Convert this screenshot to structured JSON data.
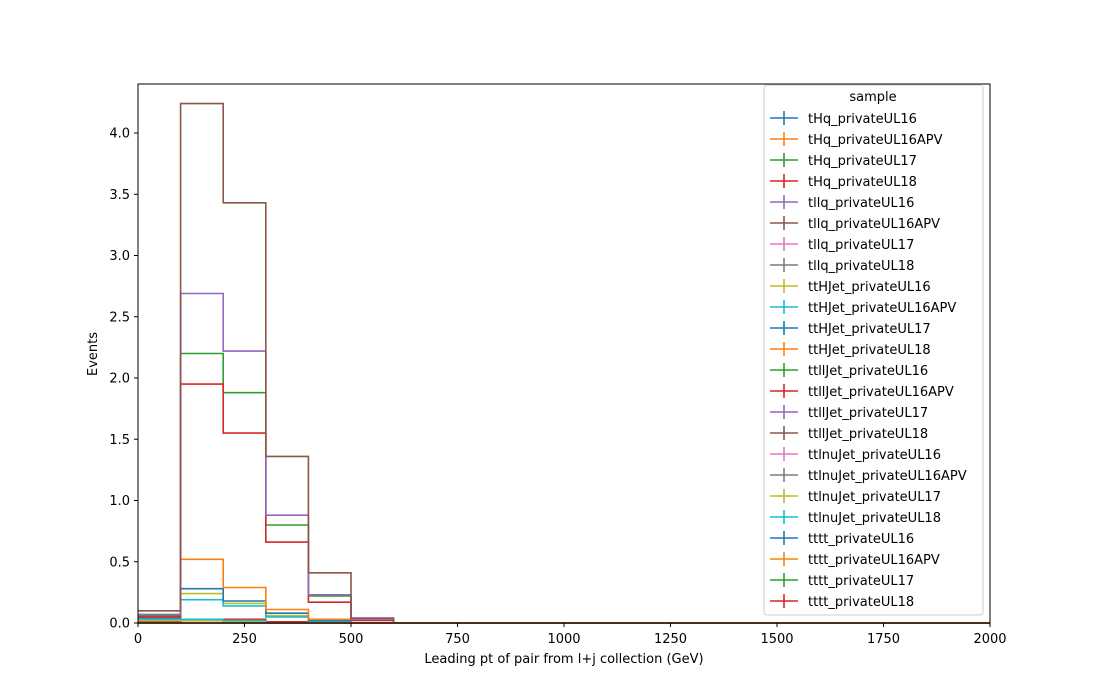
{
  "chart_data": {
    "type": "line",
    "style": "step-histogram",
    "xlabel": "Leading pt of pair from l+j collection (GeV)",
    "ylabel": "Events",
    "xlim": [
      0,
      2000
    ],
    "ylim": [
      0,
      4.4
    ],
    "x_ticks": [
      "0",
      "250",
      "500",
      "750",
      "1000",
      "1250",
      "1500",
      "1750",
      "2000"
    ],
    "y_ticks": [
      "0.0",
      "0.5",
      "1.0",
      "1.5",
      "2.0",
      "2.5",
      "3.0",
      "3.5",
      "4.0"
    ],
    "grid": false,
    "legend_title": "sample",
    "legend_position": "top-right",
    "bin_edges": [
      0,
      100,
      200,
      300,
      400,
      500,
      600,
      700,
      800,
      900,
      1000,
      1100,
      1200,
      1300,
      1400,
      1500,
      1600,
      1700,
      1800,
      1900,
      2000
    ],
    "series": [
      {
        "name": "tHq_privateUL16",
        "color": "#1f77b4",
        "values": [
          0.01,
          0.03,
          0.02,
          0.01,
          0,
          0,
          0,
          0,
          0,
          0,
          0,
          0,
          0,
          0,
          0,
          0,
          0,
          0,
          0,
          0
        ]
      },
      {
        "name": "tHq_privateUL16APV",
        "color": "#ff7f0e",
        "values": [
          0.01,
          0.03,
          0.02,
          0.01,
          0,
          0,
          0,
          0,
          0,
          0,
          0,
          0,
          0,
          0,
          0,
          0,
          0,
          0,
          0,
          0
        ]
      },
      {
        "name": "tHq_privateUL17",
        "color": "#2ca02c",
        "values": [
          0.01,
          0.03,
          0.03,
          0.01,
          0,
          0,
          0,
          0,
          0,
          0,
          0,
          0,
          0,
          0,
          0,
          0,
          0,
          0,
          0,
          0
        ]
      },
      {
        "name": "tHq_privateUL18",
        "color": "#d62728",
        "values": [
          0.01,
          0.03,
          0.03,
          0.01,
          0,
          0,
          0,
          0,
          0,
          0,
          0,
          0,
          0,
          0,
          0,
          0,
          0,
          0,
          0,
          0
        ]
      },
      {
        "name": "tllq_privateUL16",
        "color": "#9467bd",
        "values": [
          0.02,
          0.02,
          0.01,
          0,
          0,
          0,
          0,
          0,
          0,
          0,
          0,
          0,
          0,
          0,
          0,
          0,
          0,
          0,
          0,
          0
        ]
      },
      {
        "name": "tllq_privateUL16APV",
        "color": "#8c564b",
        "values": [
          0.02,
          0.02,
          0.01,
          0,
          0,
          0,
          0,
          0,
          0,
          0,
          0,
          0,
          0,
          0,
          0,
          0,
          0,
          0,
          0,
          0
        ]
      },
      {
        "name": "tllq_privateUL17",
        "color": "#e377c2",
        "values": [
          0.02,
          0.02,
          0.01,
          0,
          0,
          0,
          0,
          0,
          0,
          0,
          0,
          0,
          0,
          0,
          0,
          0,
          0,
          0,
          0,
          0
        ]
      },
      {
        "name": "tllq_privateUL18",
        "color": "#7f7f7f",
        "values": [
          0.02,
          0.02,
          0.01,
          0,
          0,
          0,
          0,
          0,
          0,
          0,
          0,
          0,
          0,
          0,
          0,
          0,
          0,
          0,
          0,
          0
        ]
      },
      {
        "name": "ttHJet_privateUL16",
        "color": "#bcbd22",
        "values": [
          0.04,
          0.24,
          0.16,
          0.06,
          0.01,
          0,
          0,
          0,
          0,
          0,
          0,
          0,
          0,
          0,
          0,
          0,
          0,
          0,
          0,
          0
        ]
      },
      {
        "name": "ttHJet_privateUL16APV",
        "color": "#17becf",
        "values": [
          0.03,
          0.19,
          0.14,
          0.05,
          0.01,
          0,
          0,
          0,
          0,
          0,
          0,
          0,
          0,
          0,
          0,
          0,
          0,
          0,
          0,
          0
        ]
      },
      {
        "name": "ttHJet_privateUL17",
        "color": "#1f77b4",
        "values": [
          0.04,
          0.28,
          0.18,
          0.08,
          0.02,
          0,
          0,
          0,
          0,
          0,
          0,
          0,
          0,
          0,
          0,
          0,
          0,
          0,
          0,
          0
        ]
      },
      {
        "name": "ttHJet_privateUL18",
        "color": "#ff7f0e",
        "values": [
          0.05,
          0.52,
          0.29,
          0.11,
          0.03,
          0,
          0,
          0,
          0,
          0,
          0,
          0,
          0,
          0,
          0,
          0,
          0,
          0,
          0,
          0
        ]
      },
      {
        "name": "ttllJet_privateUL16",
        "color": "#2ca02c",
        "values": [
          0.06,
          2.2,
          1.88,
          0.8,
          0.22,
          0.03,
          0,
          0,
          0,
          0,
          0,
          0,
          0,
          0,
          0,
          0,
          0,
          0,
          0,
          0
        ]
      },
      {
        "name": "ttllJet_privateUL16APV",
        "color": "#d62728",
        "values": [
          0.05,
          1.95,
          1.55,
          0.66,
          0.17,
          0.02,
          0,
          0,
          0,
          0,
          0,
          0,
          0,
          0,
          0,
          0,
          0,
          0,
          0,
          0
        ]
      },
      {
        "name": "ttllJet_privateUL17",
        "color": "#9467bd",
        "values": [
          0.07,
          2.69,
          2.22,
          0.88,
          0.23,
          0.03,
          0,
          0,
          0,
          0,
          0,
          0,
          0,
          0,
          0,
          0,
          0,
          0,
          0,
          0
        ]
      },
      {
        "name": "ttllJet_privateUL18",
        "color": "#8c564b",
        "values": [
          0.1,
          4.24,
          3.43,
          1.36,
          0.41,
          0.04,
          0,
          0,
          0,
          0,
          0,
          0,
          0,
          0,
          0,
          0,
          0,
          0,
          0,
          0
        ]
      },
      {
        "name": "ttlnuJet_privateUL16",
        "color": "#e377c2",
        "values": [
          0.02,
          0.02,
          0.01,
          0,
          0,
          0,
          0,
          0,
          0,
          0,
          0,
          0,
          0,
          0,
          0,
          0,
          0,
          0,
          0,
          0
        ]
      },
      {
        "name": "ttlnuJet_privateUL16APV",
        "color": "#7f7f7f",
        "values": [
          0.02,
          0.02,
          0.01,
          0,
          0,
          0,
          0,
          0,
          0,
          0,
          0,
          0,
          0,
          0,
          0,
          0,
          0,
          0,
          0,
          0
        ]
      },
      {
        "name": "ttlnuJet_privateUL17",
        "color": "#bcbd22",
        "values": [
          0.02,
          0.02,
          0.01,
          0,
          0,
          0,
          0,
          0,
          0,
          0,
          0,
          0,
          0,
          0,
          0,
          0,
          0,
          0,
          0,
          0
        ]
      },
      {
        "name": "ttlnuJet_privateUL18",
        "color": "#17becf",
        "values": [
          0.03,
          0.03,
          0.02,
          0,
          0,
          0,
          0,
          0,
          0,
          0,
          0,
          0,
          0,
          0,
          0,
          0,
          0,
          0,
          0,
          0
        ]
      },
      {
        "name": "tttt_privateUL16",
        "color": "#1f77b4",
        "values": [
          0,
          0,
          0,
          0,
          0,
          0,
          0,
          0,
          0,
          0,
          0,
          0,
          0,
          0,
          0,
          0,
          0,
          0,
          0,
          0
        ]
      },
      {
        "name": "tttt_privateUL16APV",
        "color": "#ff7f0e",
        "values": [
          0,
          0,
          0,
          0,
          0,
          0,
          0,
          0,
          0,
          0,
          0,
          0,
          0,
          0,
          0,
          0,
          0,
          0,
          0,
          0
        ]
      },
      {
        "name": "tttt_privateUL17",
        "color": "#2ca02c",
        "values": [
          0,
          0,
          0,
          0,
          0,
          0,
          0,
          0,
          0,
          0,
          0,
          0,
          0,
          0,
          0,
          0,
          0,
          0,
          0,
          0
        ]
      },
      {
        "name": "tttt_privateUL18",
        "color": "#d62728",
        "values": [
          0,
          0,
          0,
          0,
          0,
          0,
          0,
          0,
          0,
          0,
          0,
          0,
          0,
          0,
          0,
          0,
          0,
          0,
          0,
          0
        ]
      }
    ]
  }
}
